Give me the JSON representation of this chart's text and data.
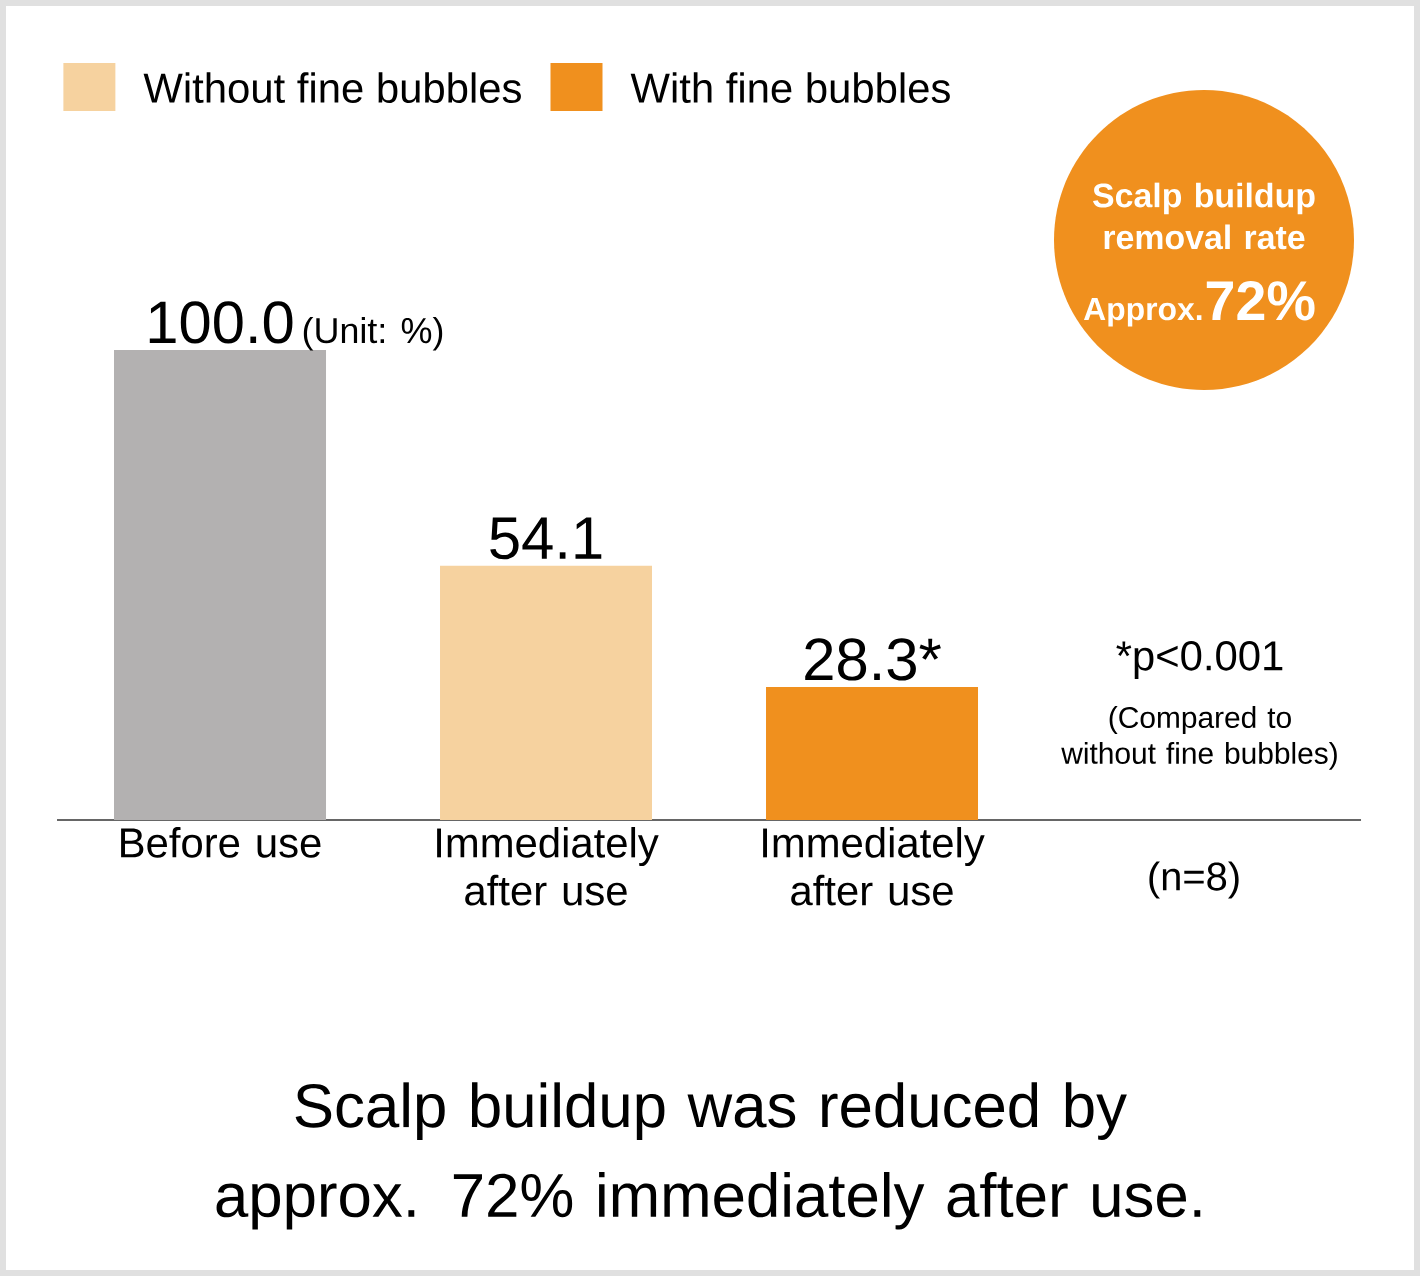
{
  "chart_data": {
    "type": "bar",
    "title": "Scalp buildup was reduced by approx. 72% immediately after use.",
    "categories": [
      "Before use",
      "Immediately after use",
      "Immediately after use"
    ],
    "series": [
      {
        "color": "#b3b1b1",
        "values": [
          100.0,
          null,
          null
        ],
        "value_labels": [
          "100.0",
          null,
          null
        ]
      },
      {
        "name": "Without fine bubbles",
        "color": "#f6d29f",
        "values": [
          null,
          54.1,
          null
        ],
        "value_labels": [
          null,
          "54.1",
          null
        ]
      },
      {
        "name": "With fine bubbles",
        "color": "#f0901e",
        "values": [
          null,
          null,
          28.3
        ],
        "value_labels": [
          null,
          null,
          "28.3*"
        ]
      }
    ],
    "legend": "top left",
    "annotations": [
      "(Unit: %)",
      "Scalp buildup removal rate",
      "Approx.",
      "72%",
      "*p<0.001",
      "(Compared to without fine bubbles)",
      "(n=8)"
    ]
  }
}
